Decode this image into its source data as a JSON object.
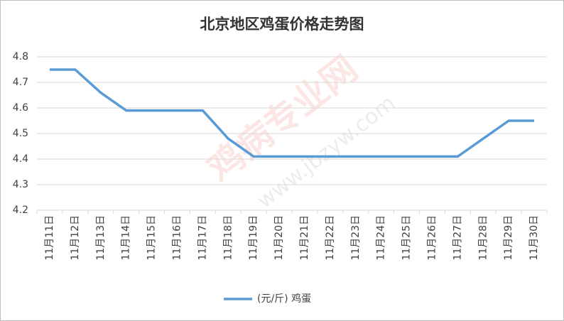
{
  "chart_data": {
    "type": "line",
    "title": "北京地区鸡蛋价格走势图",
    "categories": [
      "11月11日",
      "11月12日",
      "11月13日",
      "11月14日",
      "11月15日",
      "11月16日",
      "11月17日",
      "11月18日",
      "11月19日",
      "11月20日",
      "11月21日",
      "11月22日",
      "11月23日",
      "11月24日",
      "11月25日",
      "11月26日",
      "11月27日",
      "11月28日",
      "11月29日",
      "11月30日"
    ],
    "series": [
      {
        "name": "(元/斤) 鸡蛋",
        "color": "#5b9bd5",
        "values": [
          4.75,
          4.75,
          4.66,
          4.59,
          4.59,
          4.59,
          4.59,
          4.48,
          4.41,
          4.41,
          4.41,
          4.41,
          4.41,
          4.41,
          4.41,
          4.41,
          4.41,
          4.48,
          4.55,
          4.55
        ]
      }
    ],
    "ylim": [
      4.2,
      4.8
    ],
    "yticks": [
      4.2,
      4.3,
      4.4,
      4.5,
      4.6,
      4.7,
      4.8
    ],
    "grid": true,
    "legend": "bottom",
    "watermark": [
      "鸡病专业网",
      "www.jbzyw.com"
    ]
  }
}
